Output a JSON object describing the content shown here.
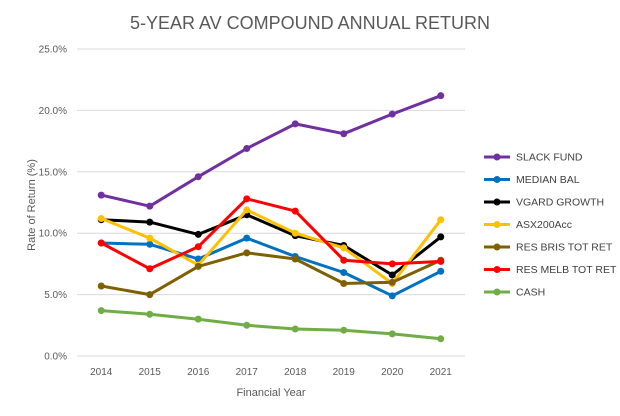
{
  "chart_data": {
    "type": "line",
    "title": "5-YEAR AV COMPOUND ANNUAL RETURN",
    "xlabel": "Financial Year",
    "ylabel": "Rate of Return (%)",
    "x": [
      "2014",
      "2015",
      "2016",
      "2017",
      "2018",
      "2019",
      "2020",
      "2021"
    ],
    "ylim": [
      0,
      25
    ],
    "yticks": [
      "0.0%",
      "5.0%",
      "10.0%",
      "15.0%",
      "20.0%",
      "25.0%"
    ],
    "grid": "horizontal",
    "legend_position": "right",
    "series": [
      {
        "name": "SLACK FUND",
        "color": "#7030A0",
        "values": [
          13.1,
          12.2,
          14.6,
          16.9,
          18.9,
          18.1,
          19.7,
          21.2
        ]
      },
      {
        "name": "MEDIAN BAL",
        "color": "#0070C0",
        "values": [
          9.2,
          9.1,
          7.9,
          9.6,
          8.1,
          6.8,
          4.9,
          6.9
        ]
      },
      {
        "name": "VGARD GROWTH",
        "color": "#000000",
        "values": [
          11.1,
          10.9,
          9.9,
          11.5,
          9.8,
          9.0,
          6.6,
          9.7
        ]
      },
      {
        "name": "ASX200Acc",
        "color": "#FFC000",
        "values": [
          11.2,
          9.6,
          7.4,
          11.9,
          10.0,
          8.8,
          5.9,
          11.1
        ]
      },
      {
        "name": "RES BRIS TOT RET",
        "color": "#7F6000",
        "values": [
          5.7,
          5.0,
          7.3,
          8.4,
          7.9,
          5.9,
          6.0,
          7.8
        ]
      },
      {
        "name": "RES MELB TOT RET",
        "color": "#FF0000",
        "values": [
          9.2,
          7.1,
          8.9,
          12.8,
          11.8,
          7.8,
          7.5,
          7.7
        ]
      },
      {
        "name": "CASH",
        "color": "#70AD47",
        "values": [
          3.7,
          3.4,
          3.0,
          2.5,
          2.2,
          2.1,
          1.8,
          1.4
        ]
      }
    ]
  }
}
